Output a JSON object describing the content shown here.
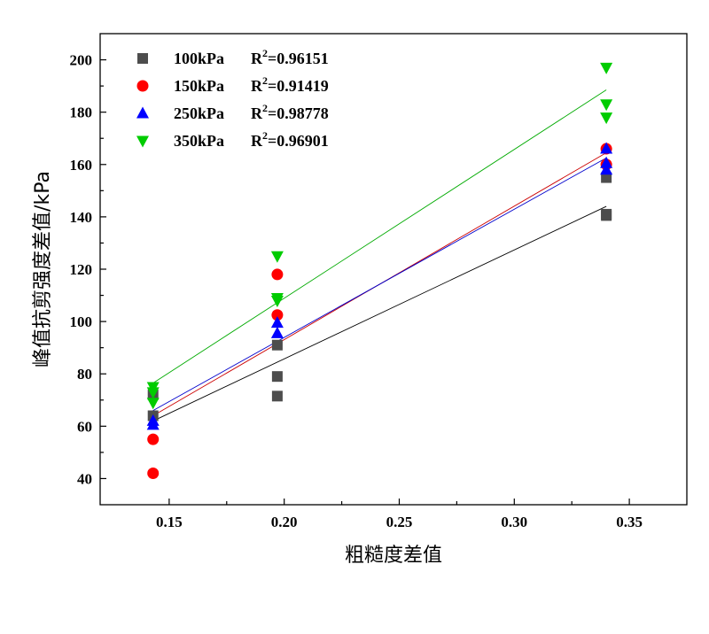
{
  "chart_data": {
    "type": "scatter",
    "xlabel": "粗糙度差值",
    "ylabel": "峰值抗剪强度差值/kPa",
    "xlim": [
      0.12,
      0.375
    ],
    "ylim": [
      30,
      210
    ],
    "xticks": [
      0.15,
      0.2,
      0.25,
      0.3,
      0.35
    ],
    "xtick_labels": [
      "0.15",
      "0.20",
      "0.25",
      "0.30",
      "0.35"
    ],
    "yticks": [
      40,
      60,
      80,
      100,
      120,
      140,
      160,
      180,
      200
    ],
    "ytick_labels": [
      "40",
      "60",
      "80",
      "100",
      "120",
      "140",
      "160",
      "180",
      "200"
    ],
    "grid": false,
    "legend_position": "top-left",
    "series": [
      {
        "name": "100kPa",
        "r2_label": "R",
        "r2_value": "=0.96151",
        "marker": "square",
        "color": "#4d4d4d",
        "fit_color": "#000000",
        "points": [
          [
            0.143,
            72
          ],
          [
            0.143,
            64
          ],
          [
            0.197,
            91
          ],
          [
            0.197,
            79
          ],
          [
            0.197,
            71.5
          ],
          [
            0.34,
            155
          ],
          [
            0.34,
            141
          ],
          [
            0.34,
            140.5
          ]
        ],
        "fit": [
          [
            0.143,
            62
          ],
          [
            0.34,
            144
          ]
        ]
      },
      {
        "name": "150kPa",
        "r2_label": "R",
        "r2_value": "=0.91419",
        "marker": "circle",
        "color": "#ff0000",
        "fit_color": "#cc0000",
        "points": [
          [
            0.143,
            55
          ],
          [
            0.143,
            42
          ],
          [
            0.197,
            118
          ],
          [
            0.197,
            102.5
          ],
          [
            0.34,
            166
          ],
          [
            0.34,
            160
          ]
        ],
        "fit": [
          [
            0.143,
            64
          ],
          [
            0.34,
            164.5
          ]
        ]
      },
      {
        "name": "250kPa",
        "r2_label": "R",
        "r2_value": "=0.98778",
        "marker": "triangle-up",
        "color": "#0000ff",
        "fit_color": "#0000cc",
        "points": [
          [
            0.143,
            62
          ],
          [
            0.143,
            60.5
          ],
          [
            0.197,
            99.5
          ],
          [
            0.197,
            95.5
          ],
          [
            0.34,
            166
          ],
          [
            0.34,
            160.5
          ],
          [
            0.34,
            158
          ]
        ],
        "fit": [
          [
            0.143,
            66
          ],
          [
            0.34,
            162.5
          ]
        ]
      },
      {
        "name": "350kPa",
        "r2_label": "R",
        "r2_value": "=0.96901",
        "marker": "triangle-down",
        "color": "#00cc00",
        "fit_color": "#00aa00",
        "points": [
          [
            0.143,
            75
          ],
          [
            0.143,
            73
          ],
          [
            0.143,
            69
          ],
          [
            0.197,
            125
          ],
          [
            0.197,
            109
          ],
          [
            0.197,
            108
          ],
          [
            0.34,
            197
          ],
          [
            0.34,
            183
          ],
          [
            0.34,
            178
          ]
        ],
        "fit": [
          [
            0.143,
            76.5
          ],
          [
            0.34,
            188.5
          ]
        ]
      }
    ]
  }
}
